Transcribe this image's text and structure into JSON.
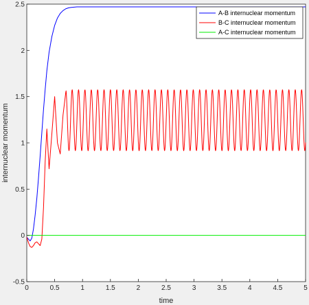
{
  "chart_data": {
    "type": "line",
    "title": "",
    "xlabel": "time",
    "ylabel": "internuclear momentum",
    "xlim": [
      0,
      5
    ],
    "ylim": [
      -0.5,
      2.5
    ],
    "x_ticks": [
      "0",
      "0.5",
      "1",
      "1.5",
      "2",
      "2.5",
      "3",
      "3.5",
      "4",
      "4.5",
      "5"
    ],
    "y_ticks": [
      "-0.5",
      "0",
      "0.5",
      "1",
      "1.5",
      "2",
      "2.5"
    ],
    "grid": false,
    "legend_position": "top-right",
    "series": [
      {
        "name": "A-B internuclear momentum",
        "color": "#0000ff",
        "x": [
          0,
          0.03,
          0.06,
          0.09,
          0.12,
          0.15,
          0.18,
          0.21,
          0.24,
          0.27,
          0.3,
          0.33,
          0.36,
          0.4,
          0.45,
          0.5,
          0.55,
          0.6,
          0.65,
          0.7,
          0.75,
          0.8,
          0.9,
          1.0,
          1.2,
          1.5,
          2.0,
          3.0,
          4.0,
          5.0
        ],
        "y": [
          -0.02,
          -0.04,
          -0.06,
          -0.03,
          0.07,
          0.22,
          0.4,
          0.62,
          0.86,
          1.11,
          1.36,
          1.58,
          1.78,
          1.98,
          2.15,
          2.27,
          2.35,
          2.4,
          2.43,
          2.45,
          2.46,
          2.465,
          2.47,
          2.47,
          2.47,
          2.47,
          2.47,
          2.47,
          2.47,
          2.47
        ]
      },
      {
        "name": "B-C internuclear momentum",
        "color": "#ff0000",
        "x": [
          0,
          0.03,
          0.06,
          0.09,
          0.12,
          0.15,
          0.18,
          0.21,
          0.24,
          0.27,
          0.3,
          0.33,
          0.36,
          0.4,
          0.45,
          0.5,
          0.55,
          0.6,
          0.65,
          0.7
        ],
        "y": [
          -0.02,
          -0.08,
          -0.12,
          -0.13,
          -0.11,
          -0.08,
          -0.07,
          -0.09,
          -0.11,
          -0.04,
          0.3,
          0.8,
          1.15,
          0.72,
          1.1,
          1.5,
          1.0,
          0.88,
          1.3,
          1.55
        ],
        "oscillation": {
          "from_x": 0.7,
          "center": 1.245,
          "amplitude": 0.33,
          "period": 0.1143
        }
      },
      {
        "name": "A-C internuclear momentum",
        "color": "#00ee00",
        "x": [
          0,
          5
        ],
        "y": [
          0,
          0
        ]
      }
    ]
  }
}
